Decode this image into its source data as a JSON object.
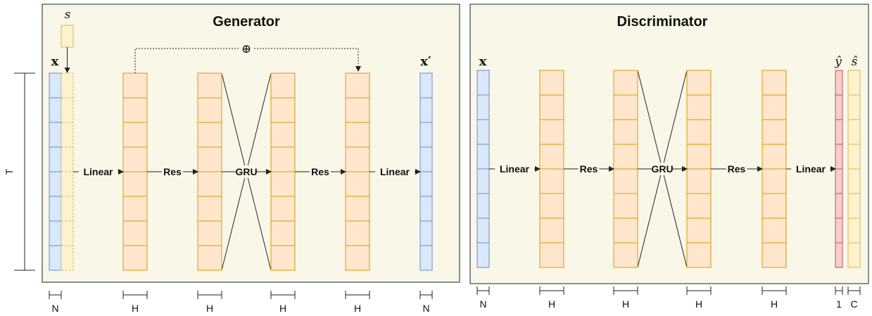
{
  "generator": {
    "title": "Generator",
    "input_label": "x",
    "output_label": "x′",
    "style_label": "s",
    "skip_symbol": "⊕",
    "time_label": "T",
    "ops": [
      "Linear",
      "Res",
      "GRU",
      "Res",
      "Linear"
    ],
    "dims": [
      "N",
      "H",
      "H",
      "H",
      "H",
      "N"
    ]
  },
  "discriminator": {
    "title": "Discriminator",
    "input_label": "x",
    "output_label_y": "ŷ",
    "output_label_s": "ŝ",
    "ops": [
      "Linear",
      "Res",
      "GRU",
      "Res",
      "Linear"
    ],
    "dims": [
      "N",
      "H",
      "H",
      "H",
      "H",
      "1",
      "C"
    ]
  },
  "colors": {
    "input_fill": "#dae8fc",
    "input_stroke": "#6c8ebf",
    "hidden_fill": "#ffe6cc",
    "hidden_stroke": "#d79b00",
    "style_fill": "#fff2cc",
    "style_stroke": "#d6b656",
    "adv_fill": "#f8cecc",
    "adv_stroke": "#b85450",
    "panel_fill": "#f9f7e8"
  }
}
